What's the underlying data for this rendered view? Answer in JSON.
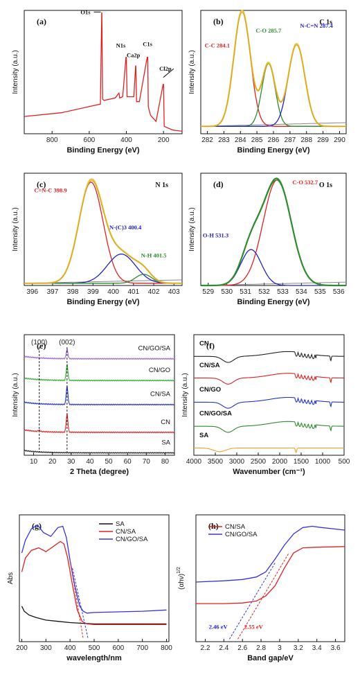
{
  "chart_data": [
    {
      "id": "a",
      "type": "line",
      "panel_label": "(a)",
      "xlabel": "Binding Energy (eV)",
      "ylabel": "Intensity (a.u.)",
      "x_ticks": [
        800,
        600,
        400,
        200
      ],
      "x_reversed": true,
      "xlim": [
        100,
        950
      ],
      "color": "#e02020",
      "series": [
        {
          "x": [
            950,
            750,
            600,
            540,
            533,
            532,
            528,
            520,
            460,
            440,
            436,
            420,
            402,
            400,
            396,
            360,
            350,
            349,
            345,
            330,
            288,
            285,
            282,
            270,
            240,
            202,
            200,
            196,
            150,
            100
          ],
          "y": [
            0.14,
            0.17,
            0.22,
            0.24,
            0.98,
            0.98,
            0.28,
            0.27,
            0.29,
            0.33,
            0.29,
            0.3,
            0.62,
            0.62,
            0.3,
            0.3,
            0.55,
            0.55,
            0.26,
            0.26,
            0.62,
            0.62,
            0.22,
            0.15,
            0.1,
            0.4,
            0.4,
            0.06,
            0.03,
            0.02
          ]
        }
      ],
      "annotations": [
        {
          "text": "O1s",
          "x": 620,
          "y": 0.97,
          "color": "#111",
          "arrow_to": [
            538,
            0.97
          ]
        },
        {
          "text": "N1s",
          "x": 430,
          "y": 0.7,
          "color": "#111"
        },
        {
          "text": "Ca2p",
          "x": 362,
          "y": 0.62,
          "color": "#111"
        },
        {
          "text": "C1s",
          "x": 286,
          "y": 0.71,
          "color": "#111"
        },
        {
          "text": "Cl2p",
          "x": 190,
          "y": 0.51,
          "color": "#111",
          "arrow_to": [
            201,
            0.44
          ]
        }
      ]
    },
    {
      "id": "b",
      "type": "line",
      "panel_label": "(b)",
      "title": "C 1s",
      "xlabel": "Binding Energy (eV)",
      "ylabel": "Intensity (a.u.)",
      "x_ticks": [
        282,
        283,
        284,
        285,
        286,
        287,
        288,
        289,
        290
      ],
      "xlim": [
        281.6,
        290.4
      ],
      "baseline": 0.06,
      "peaks": [
        {
          "name": "C-C 284.1",
          "center": 284.1,
          "height": 0.94,
          "width": 0.5,
          "color": "#e02020"
        },
        {
          "name": "C-O 285.7",
          "center": 285.7,
          "height": 0.51,
          "width": 0.4,
          "color": "#2e8b2e"
        },
        {
          "name": "N-C=N 287.4",
          "center": 287.4,
          "height": 0.67,
          "width": 0.5,
          "color": "#2222cc"
        }
      ],
      "envelope_color": "#e8c03a",
      "fit_color": "#d4a020",
      "bg_color": "#888888",
      "annotations": [
        {
          "text": "C-C 284.1",
          "x": 282.6,
          "y": 0.7,
          "color": "#e02020"
        },
        {
          "text": "C-O 285.7",
          "x": 285.7,
          "y": 0.82,
          "color": "#2e8b2e"
        },
        {
          "text": "N-C=N 287.4",
          "x": 288.6,
          "y": 0.86,
          "color": "#2222cc"
        }
      ]
    },
    {
      "id": "c",
      "type": "line",
      "panel_label": "(c)",
      "title": "N 1s",
      "xlabel": "Binding Energy (eV)",
      "ylabel": "Intensity (a.u.)",
      "x_ticks": [
        396,
        397,
        398,
        399,
        400,
        401,
        402,
        403
      ],
      "xlim": [
        395.6,
        403.4
      ],
      "baseline": 0.02,
      "peaks": [
        {
          "name": "C=N-C 398.9",
          "center": 398.9,
          "height": 0.9,
          "width": 0.6,
          "color": "#e02020"
        },
        {
          "name": "N-(C)3 400.4",
          "center": 400.4,
          "height": 0.26,
          "width": 0.7,
          "color": "#2222cc"
        },
        {
          "name": "N-H 401.5",
          "center": 401.5,
          "height": 0.08,
          "width": 0.4,
          "color": "#2e8b2e"
        }
      ],
      "envelope_color": "#e8c03a",
      "fit_color": "#d4a020",
      "bg_color": "#888888",
      "annotations": [
        {
          "text": "C=N-C 398.9",
          "x": 396.9,
          "y": 0.83,
          "color": "#e02020"
        },
        {
          "text": "N-(C)3 400.4",
          "x": 400.6,
          "y": 0.5,
          "color": "#2222cc"
        },
        {
          "text": "N-H 401.5",
          "x": 402.0,
          "y": 0.25,
          "color": "#2e8b2e"
        }
      ]
    },
    {
      "id": "d",
      "type": "line",
      "panel_label": "(d)",
      "title": "O 1s",
      "xlabel": "Binding Energy (eV)",
      "ylabel": "Intensity (a.u.)",
      "x_ticks": [
        529,
        530,
        531,
        532,
        533,
        534,
        535,
        536
      ],
      "xlim": [
        528.6,
        536.4
      ],
      "baseline": 0.0,
      "peaks": [
        {
          "name": "C-O 532.7",
          "center": 532.7,
          "height": 0.94,
          "width": 0.75,
          "color": "#e02020"
        },
        {
          "name": "O-H 531.3",
          "center": 531.3,
          "height": 0.32,
          "width": 0.55,
          "color": "#2222cc"
        }
      ],
      "envelope_color": "#2e8b2e",
      "fit_color": "#2e8b2e",
      "bg_color": "#888888",
      "annotations": [
        {
          "text": "C-O 532.7",
          "x": 534.2,
          "y": 0.9,
          "color": "#e02020"
        },
        {
          "text": "O-H 531.3",
          "x": 529.4,
          "y": 0.43,
          "color": "#2222cc"
        }
      ]
    },
    {
      "id": "e",
      "type": "line",
      "panel_label": "(e)",
      "xlabel": "2 Theta (degree)",
      "ylabel": "Intensity (a.u.)",
      "x_ticks": [
        10,
        20,
        30,
        40,
        50,
        60,
        70,
        80
      ],
      "xlim": [
        5,
        85
      ],
      "peak_labels": [
        {
          "text": "(100)",
          "x": 13
        },
        {
          "text": "(002)",
          "x": 27.8
        }
      ],
      "series": [
        {
          "name": "CN/GO/SA",
          "offset": 0.8,
          "peak002": 0.08,
          "peak100": 0.0,
          "color": "#9966cc"
        },
        {
          "name": "CN/GO",
          "offset": 0.62,
          "peak002": 0.13,
          "peak100": 0.0,
          "color": "#33aa33"
        },
        {
          "name": "CN/SA",
          "offset": 0.42,
          "peak002": 0.15,
          "peak100": 0.0,
          "color": "#2233cc"
        },
        {
          "name": "CN",
          "offset": 0.19,
          "peak002": 0.15,
          "peak100": 0.01,
          "color": "#e02020"
        },
        {
          "name": "SA",
          "offset": 0.02,
          "peak002": 0.0,
          "peak100": 0.0,
          "color": "#222222"
        }
      ]
    },
    {
      "id": "f",
      "type": "line",
      "panel_label": "(f)",
      "xlabel": "Wavenumber (cm⁻¹)",
      "ylabel": "Intensity (a.u.)",
      "x_ticks": [
        4000,
        3500,
        3000,
        2500,
        2000,
        1500,
        1000,
        500
      ],
      "x_reversed": true,
      "xlim": [
        500,
        4000
      ],
      "series": [
        {
          "name": "CN",
          "offset": 0.82,
          "color": "#222222"
        },
        {
          "name": "CN/SA",
          "offset": 0.64,
          "color": "#e02020"
        },
        {
          "name": "CN/GO",
          "offset": 0.44,
          "color": "#2233cc"
        },
        {
          "name": "CN/GO/SA",
          "offset": 0.24,
          "color": "#2e8b2e"
        },
        {
          "name": "SA",
          "offset": 0.06,
          "color": "#f0a030"
        }
      ]
    },
    {
      "id": "g",
      "type": "line",
      "panel_label": "(g)",
      "xlabel": "wavelength/nm",
      "ylabel": "Abs",
      "x_ticks": [
        200,
        300,
        400,
        500,
        600,
        700,
        800
      ],
      "xlim": [
        190,
        810
      ],
      "series": [
        {
          "name": "SA",
          "color": "#111111",
          "x": [
            200,
            210,
            230,
            260,
            300,
            350,
            400,
            450,
            500,
            600,
            700,
            800
          ],
          "y": [
            0.28,
            0.24,
            0.21,
            0.19,
            0.17,
            0.16,
            0.15,
            0.145,
            0.14,
            0.14,
            0.14,
            0.14
          ]
        },
        {
          "name": "CN/SA",
          "color": "#e02020",
          "x": [
            200,
            215,
            240,
            270,
            300,
            330,
            360,
            375,
            390,
            410,
            430,
            450,
            470,
            500,
            600,
            700,
            800
          ],
          "y": [
            0.55,
            0.66,
            0.72,
            0.74,
            0.71,
            0.75,
            0.79,
            0.77,
            0.66,
            0.45,
            0.25,
            0.16,
            0.14,
            0.135,
            0.135,
            0.135,
            0.135
          ]
        },
        {
          "name": "CN/GO/SA",
          "color": "#3333dd",
          "x": [
            200,
            215,
            240,
            265,
            290,
            320,
            350,
            370,
            385,
            400,
            420,
            440,
            455,
            470,
            500,
            600,
            700,
            800
          ],
          "y": [
            0.7,
            0.8,
            0.89,
            0.92,
            0.86,
            0.83,
            0.9,
            0.91,
            0.82,
            0.64,
            0.44,
            0.28,
            0.24,
            0.225,
            0.23,
            0.235,
            0.24,
            0.25
          ]
        }
      ],
      "tangents": [
        {
          "color": "#e02020",
          "from": [
            400,
            0.64
          ],
          "to": [
            455,
            0.02
          ]
        },
        {
          "color": "#3333dd",
          "from": [
            410,
            0.58
          ],
          "to": [
            475,
            0.02
          ]
        }
      ]
    },
    {
      "id": "h",
      "type": "line",
      "panel_label": "(h)",
      "xlabel": "Band gap/eV",
      "ylabel": "(αhν)^1/2",
      "x_ticks": [
        2.2,
        2.4,
        2.6,
        2.8,
        3.0,
        3.2,
        3.4,
        3.6
      ],
      "xlim": [
        2.1,
        3.7
      ],
      "series": [
        {
          "name": "CN/SA",
          "color": "#e02020",
          "x": [
            2.1,
            2.4,
            2.6,
            2.75,
            2.85,
            2.95,
            3.05,
            3.15,
            3.25,
            3.4,
            3.7
          ],
          "y": [
            0.3,
            0.3,
            0.305,
            0.32,
            0.36,
            0.44,
            0.58,
            0.7,
            0.74,
            0.745,
            0.75
          ]
        },
        {
          "name": "CN/GO/SA",
          "color": "#3333dd",
          "x": [
            2.1,
            2.4,
            2.6,
            2.75,
            2.85,
            2.95,
            3.05,
            3.15,
            3.25,
            3.35,
            3.45,
            3.7
          ],
          "y": [
            0.47,
            0.48,
            0.49,
            0.51,
            0.55,
            0.65,
            0.76,
            0.85,
            0.9,
            0.91,
            0.9,
            0.88
          ]
        }
      ],
      "tangents": [
        {
          "color": "#e02020",
          "from": [
            2.55,
            0.02
          ],
          "to": [
            3.1,
            0.7
          ]
        },
        {
          "color": "#3333dd",
          "from": [
            2.46,
            0.02
          ],
          "to": [
            2.95,
            0.62
          ]
        }
      ],
      "annotations": [
        {
          "text": "2.46 eV",
          "x": 2.34,
          "y": 0.1,
          "color": "#2222cc"
        },
        {
          "text": "2.55 eV",
          "x": 2.72,
          "y": 0.1,
          "color": "#e02020"
        }
      ]
    }
  ]
}
